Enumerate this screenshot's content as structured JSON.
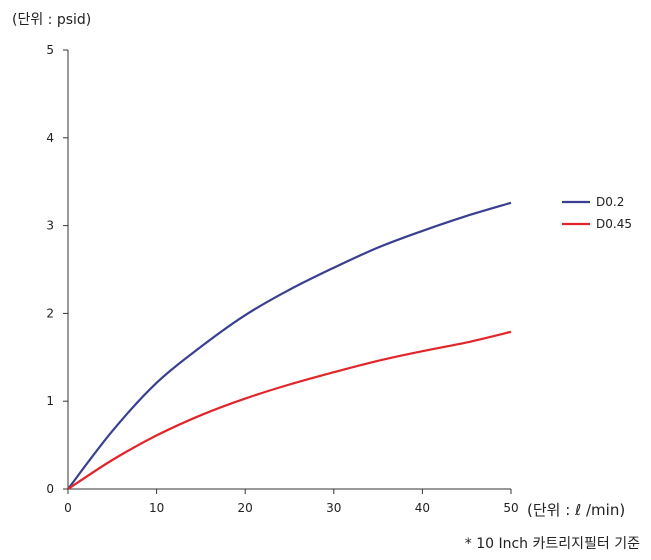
{
  "chart_data": {
    "type": "line",
    "ylabel": "(단위 : psid)",
    "xlabel": "(단위 :  ℓ /min)",
    "footnote": "* 10 Inch 카트리지필터 기준",
    "xlim": [
      0,
      50
    ],
    "ylim": [
      0,
      5
    ],
    "x_ticks": [
      0,
      10,
      20,
      30,
      40,
      50
    ],
    "y_ticks": [
      0,
      1,
      2,
      3,
      4,
      5
    ],
    "grid": false,
    "legend_position": "right",
    "series": [
      {
        "name": "D0.2",
        "color": "#3a3f8f",
        "x": [
          0,
          5,
          10,
          15,
          20,
          25,
          30,
          35,
          40,
          45,
          50
        ],
        "y": [
          0,
          0.66,
          1.21,
          1.62,
          1.98,
          2.27,
          2.52,
          2.75,
          2.94,
          3.11,
          3.26
        ]
      },
      {
        "name": "D0.45",
        "color": "#e0262b",
        "x": [
          0,
          5,
          10,
          15,
          20,
          25,
          30,
          35,
          40,
          45,
          50
        ],
        "y": [
          0,
          0.33,
          0.61,
          0.84,
          1.03,
          1.19,
          1.33,
          1.46,
          1.57,
          1.67,
          1.79
        ]
      }
    ]
  }
}
